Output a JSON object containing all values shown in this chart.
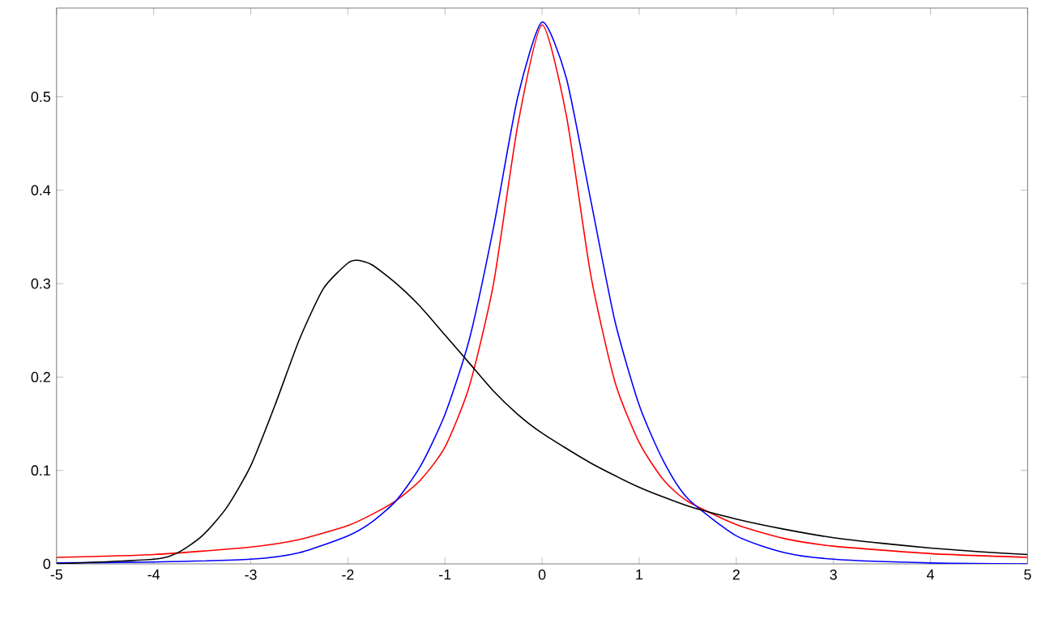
{
  "chart_data": {
    "type": "line",
    "xlim": [
      -5,
      5
    ],
    "ylim": [
      0,
      0.595
    ],
    "xticks": [
      -5,
      -4,
      -3,
      -2,
      -1,
      0,
      1,
      2,
      3,
      4,
      5
    ],
    "yticks": [
      0,
      0.1,
      0.2,
      0.3,
      0.4,
      0.5
    ],
    "grid": false,
    "marker": "none",
    "line_style": "solid",
    "series": [
      {
        "color": "#ff0000",
        "x": [
          -5,
          -4,
          -3,
          -2.5,
          -2,
          -1.75,
          -1.5,
          -1.25,
          -1,
          -0.75,
          -0.5,
          -0.25,
          0,
          0.25,
          0.5,
          0.75,
          1,
          1.25,
          1.5,
          2,
          2.5,
          3,
          4,
          5
        ],
        "values": [
          0.007,
          0.01,
          0.018,
          0.026,
          0.041,
          0.053,
          0.068,
          0.09,
          0.125,
          0.19,
          0.3,
          0.47,
          0.577,
          0.48,
          0.31,
          0.195,
          0.13,
          0.09,
          0.067,
          0.042,
          0.027,
          0.019,
          0.011,
          0.007
        ]
      },
      {
        "color": "#0000ff",
        "x": [
          -5,
          -4,
          -3,
          -2.5,
          -2,
          -1.75,
          -1.5,
          -1.25,
          -1,
          -0.75,
          -0.5,
          -0.25,
          0,
          0.25,
          0.5,
          0.75,
          1,
          1.25,
          1.5,
          2,
          2.5,
          3,
          4,
          5
        ],
        "values": [
          0.001,
          0.002,
          0.005,
          0.012,
          0.03,
          0.045,
          0.068,
          0.105,
          0.16,
          0.24,
          0.36,
          0.5,
          0.58,
          0.52,
          0.39,
          0.26,
          0.17,
          0.11,
          0.07,
          0.03,
          0.012,
          0.005,
          0.001,
          0
        ]
      },
      {
        "color": "#000000",
        "x": [
          -5,
          -4,
          -3.75,
          -3.5,
          -3.25,
          -3,
          -2.75,
          -2.5,
          -2.25,
          -2,
          -1.9,
          -1.75,
          -1.5,
          -1.25,
          -1,
          -0.75,
          -0.5,
          -0.25,
          0,
          0.5,
          1,
          1.5,
          2,
          2.5,
          3,
          3.5,
          4,
          4.5,
          5
        ],
        "values": [
          0,
          0.005,
          0.012,
          0.03,
          0.06,
          0.105,
          0.17,
          0.24,
          0.295,
          0.322,
          0.325,
          0.32,
          0.3,
          0.275,
          0.245,
          0.215,
          0.185,
          0.16,
          0.14,
          0.108,
          0.082,
          0.062,
          0.048,
          0.037,
          0.028,
          0.022,
          0.017,
          0.013,
          0.01
        ]
      }
    ]
  }
}
